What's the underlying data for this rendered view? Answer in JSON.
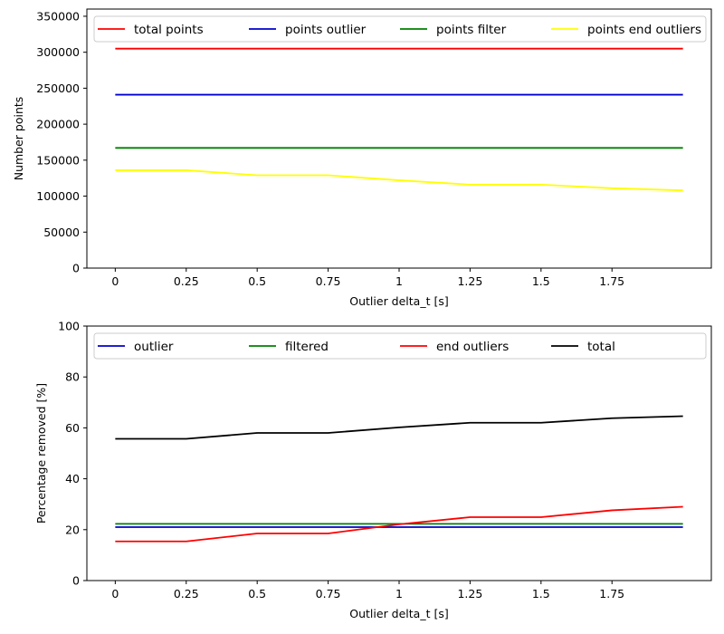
{
  "chart_data": [
    {
      "type": "line",
      "title": "",
      "xlabel": "Outlier delta_t [s]",
      "ylabel": "Number points",
      "x": [
        0,
        0.25,
        0.5,
        0.75,
        1,
        1.25,
        1.5,
        1.75,
        2
      ],
      "xlim": [
        -0.1,
        2.1
      ],
      "xticks": [
        0,
        0.25,
        0.5,
        0.75,
        1,
        1.25,
        1.5,
        1.75
      ],
      "xtick_labels": [
        "0",
        "0.25",
        "0.5",
        "0.75",
        "1",
        "1.25",
        "1.5",
        "1.75"
      ],
      "ylim": [
        0,
        360000
      ],
      "yticks": [
        0,
        50000,
        100000,
        150000,
        200000,
        250000,
        300000,
        350000
      ],
      "ytick_labels": [
        "0",
        "50000",
        "100000",
        "150000",
        "200000",
        "250000",
        "300000",
        "350000"
      ],
      "grid": false,
      "legend_placement": "top",
      "series": [
        {
          "name": "total points",
          "color": "#ff0000",
          "values": [
            305000,
            305000,
            305000,
            305000,
            305000,
            305000,
            305000,
            305000,
            305000
          ]
        },
        {
          "name": "points outlier",
          "color": "#0000cc",
          "values": [
            241000,
            241000,
            241000,
            241000,
            241000,
            241000,
            241000,
            241000,
            241000
          ]
        },
        {
          "name": "points filter",
          "color": "#008000",
          "values": [
            167000,
            167000,
            167000,
            167000,
            167000,
            167000,
            167000,
            167000,
            167000
          ]
        },
        {
          "name": "points end outliers",
          "color": "#ffff00",
          "values": [
            136000,
            136000,
            129000,
            129000,
            122000,
            116000,
            116000,
            111000,
            108000
          ]
        }
      ]
    },
    {
      "type": "line",
      "title": "",
      "xlabel": "Outlier delta_t [s]",
      "ylabel": "Percentage removed [%]",
      "x": [
        0,
        0.25,
        0.5,
        0.75,
        1,
        1.25,
        1.5,
        1.75,
        2
      ],
      "xlim": [
        -0.1,
        2.1
      ],
      "xticks": [
        0,
        0.25,
        0.5,
        0.75,
        1,
        1.25,
        1.5,
        1.75
      ],
      "xtick_labels": [
        "0",
        "0.25",
        "0.5",
        "0.75",
        "1",
        "1.25",
        "1.5",
        "1.75"
      ],
      "ylim": [
        0,
        100
      ],
      "yticks": [
        0,
        20,
        40,
        60,
        80,
        100
      ],
      "ytick_labels": [
        "0",
        "20",
        "40",
        "60",
        "80",
        "100"
      ],
      "grid": false,
      "legend_placement": "top",
      "series": [
        {
          "name": "outlier",
          "color": "#0000cc",
          "values": [
            21,
            21,
            21,
            21,
            21,
            21,
            21,
            21,
            21
          ]
        },
        {
          "name": "filtered",
          "color": "#008000",
          "values": [
            22.3,
            22.3,
            22.3,
            22.3,
            22.3,
            22.3,
            22.3,
            22.3,
            22.3
          ]
        },
        {
          "name": "end outliers",
          "color": "#ff0000",
          "values": [
            15.4,
            15.4,
            18.5,
            18.5,
            22.1,
            24.9,
            24.9,
            27.6,
            29
          ]
        },
        {
          "name": "total",
          "color": "#000000",
          "values": [
            55.7,
            55.7,
            58,
            58,
            60.2,
            62,
            62,
            63.8,
            64.6
          ]
        }
      ]
    }
  ]
}
